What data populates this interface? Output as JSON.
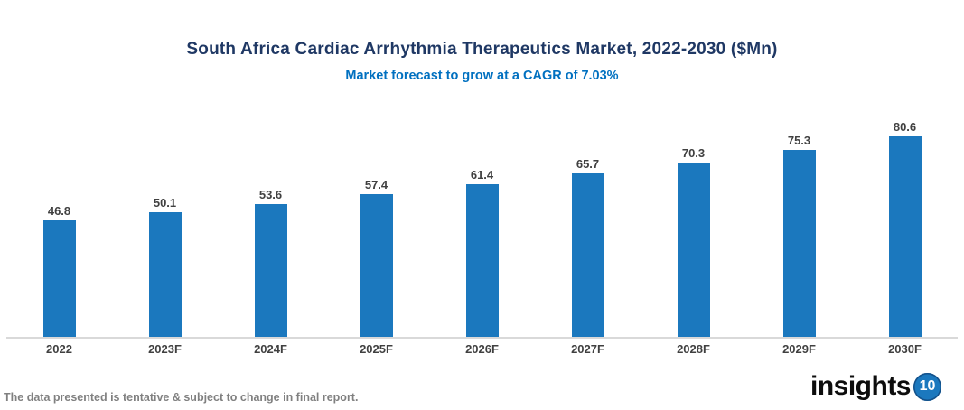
{
  "chart_data": {
    "type": "bar",
    "title": "South Africa Cardiac Arrhythmia Therapeutics Market, 2022-2030 ($Mn)",
    "subtitle": "Market forecast to grow at a CAGR of 7.03%",
    "categories": [
      "2022",
      "2023F",
      "2024F",
      "2025F",
      "2026F",
      "2027F",
      "2028F",
      "2029F",
      "2030F"
    ],
    "values": [
      46.8,
      50.1,
      53.6,
      57.4,
      61.4,
      65.7,
      70.3,
      75.3,
      80.6
    ],
    "xlabel": "",
    "ylabel": "",
    "ylim": [
      0,
      85
    ],
    "grid": false,
    "legend_position": "none",
    "data_labels": true
  },
  "colors": {
    "bar": "#1B78BE",
    "title": "#1F3864",
    "subtitle": "#0070C0",
    "data_label": "#404040",
    "tick_label": "#404040",
    "axis_line": "#D9D9D9",
    "footnote": "#808080",
    "logo_text": "#0D0D0D",
    "logo_circle": "#1B78BE"
  },
  "footer": {
    "note": "The data presented is tentative & subject to change in final report.",
    "logo_text": "insights",
    "logo_number": "10"
  }
}
